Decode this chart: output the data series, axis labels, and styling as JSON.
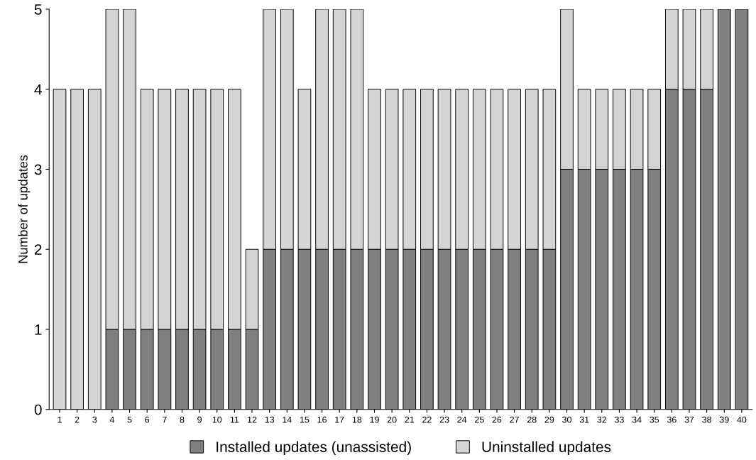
{
  "chart_data": {
    "type": "bar",
    "stacked": true,
    "ylabel": "Number of updates",
    "categories": [
      "1",
      "2",
      "3",
      "4",
      "5",
      "6",
      "7",
      "8",
      "9",
      "10",
      "11",
      "12",
      "13",
      "14",
      "15",
      "16",
      "17",
      "18",
      "19",
      "20",
      "21",
      "22",
      "23",
      "24",
      "25",
      "26",
      "27",
      "28",
      "29",
      "30",
      "31",
      "32",
      "33",
      "34",
      "35",
      "36",
      "37",
      "38",
      "39",
      "40"
    ],
    "series": [
      {
        "name": "Installed updates (unassisted)",
        "color": "#808083",
        "values": [
          0,
          0,
          0,
          1,
          1,
          1,
          1,
          1,
          1,
          1,
          1,
          1,
          2,
          2,
          2,
          2,
          2,
          2,
          2,
          2,
          2,
          2,
          2,
          2,
          2,
          2,
          2,
          2,
          2,
          3,
          3,
          3,
          3,
          3,
          3,
          4,
          4,
          4,
          5,
          5
        ]
      },
      {
        "name": "Uninstalled updates",
        "color": "#d4d4d4",
        "values": [
          4,
          4,
          4,
          4,
          4,
          3,
          3,
          3,
          3,
          3,
          3,
          1,
          3,
          3,
          2,
          3,
          3,
          3,
          2,
          2,
          2,
          2,
          2,
          2,
          2,
          2,
          2,
          2,
          2,
          2,
          1,
          1,
          1,
          1,
          1,
          1,
          1,
          1,
          0,
          0
        ]
      }
    ],
    "ylim": [
      0,
      5
    ],
    "yticks": [
      0,
      1,
      2,
      3,
      4,
      5
    ],
    "grid": false,
    "legend": "bottom"
  }
}
